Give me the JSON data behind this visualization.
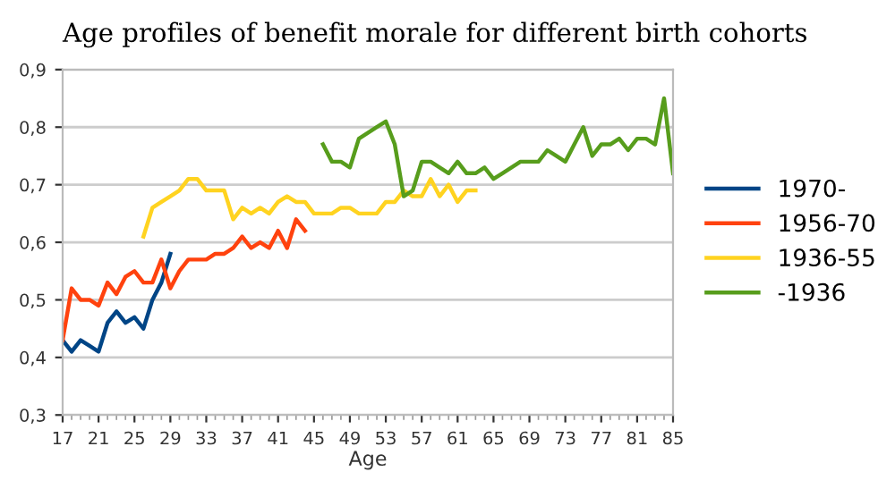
{
  "chart_data": {
    "type": "line",
    "title": "Age profiles of benefit morale for different birth cohorts",
    "xlabel": "Age",
    "xlim": [
      17,
      85
    ],
    "xticks": [
      17,
      21,
      25,
      29,
      33,
      37,
      41,
      45,
      49,
      53,
      57,
      61,
      65,
      69,
      73,
      77,
      81,
      85
    ],
    "ylim": [
      0.3,
      0.9
    ],
    "yticks": [
      {
        "value": 0.3,
        "label": "0,3"
      },
      {
        "value": 0.4,
        "label": "0,4"
      },
      {
        "value": 0.5,
        "label": "0,5"
      },
      {
        "value": 0.6,
        "label": "0,6"
      },
      {
        "value": 0.7,
        "label": "0,7"
      },
      {
        "value": 0.8,
        "label": "0,8"
      },
      {
        "value": 0.9,
        "label": "0,9"
      }
    ],
    "grid": "y",
    "legend": "right",
    "marker": "none",
    "line_style": "solid",
    "series": [
      {
        "name": "1970-",
        "color": "#004586",
        "x": [
          17,
          18,
          19,
          20,
          21,
          22,
          23,
          24,
          25,
          26,
          27,
          28,
          29
        ],
        "values": [
          0.43,
          0.41,
          0.43,
          0.42,
          0.41,
          0.46,
          0.48,
          0.46,
          0.47,
          0.45,
          0.5,
          0.53,
          0.58
        ]
      },
      {
        "name": "1956-70",
        "color": "#ff420e",
        "x": [
          17,
          18,
          19,
          20,
          21,
          22,
          23,
          24,
          25,
          26,
          27,
          28,
          29,
          30,
          31,
          32,
          33,
          34,
          35,
          36,
          37,
          38,
          39,
          40,
          41,
          42,
          43,
          44
        ],
        "values": [
          0.43,
          0.52,
          0.5,
          0.5,
          0.49,
          0.53,
          0.51,
          0.54,
          0.55,
          0.53,
          0.53,
          0.57,
          0.52,
          0.55,
          0.57,
          0.57,
          0.57,
          0.58,
          0.58,
          0.59,
          0.61,
          0.59,
          0.6,
          0.59,
          0.62,
          0.59,
          0.64,
          0.62
        ]
      },
      {
        "name": "1936-55",
        "color": "#ffd320",
        "x": [
          26,
          27,
          28,
          29,
          30,
          31,
          32,
          33,
          34,
          35,
          36,
          37,
          38,
          39,
          40,
          41,
          42,
          43,
          44,
          45,
          46,
          47,
          48,
          49,
          50,
          51,
          52,
          53,
          54,
          55,
          56,
          57,
          58,
          59,
          60,
          61,
          62,
          63
        ],
        "values": [
          0.61,
          0.66,
          0.67,
          0.68,
          0.69,
          0.71,
          0.71,
          0.69,
          0.69,
          0.69,
          0.64,
          0.66,
          0.65,
          0.66,
          0.65,
          0.67,
          0.68,
          0.67,
          0.67,
          0.65,
          0.65,
          0.65,
          0.66,
          0.66,
          0.65,
          0.65,
          0.65,
          0.67,
          0.67,
          0.69,
          0.68,
          0.68,
          0.71,
          0.68,
          0.7,
          0.67,
          0.69,
          0.69
        ]
      },
      {
        "name": "-1936",
        "color": "#579d1c",
        "x": [
          46,
          47,
          48,
          49,
          50,
          51,
          52,
          53,
          54,
          55,
          56,
          57,
          58,
          59,
          60,
          61,
          62,
          63,
          64,
          65,
          66,
          67,
          68,
          69,
          70,
          71,
          72,
          73,
          74,
          75,
          76,
          77,
          78,
          79,
          80,
          81,
          82,
          83,
          84,
          85
        ],
        "values": [
          0.77,
          0.74,
          0.74,
          0.73,
          0.78,
          0.79,
          0.8,
          0.81,
          0.77,
          0.68,
          0.69,
          0.74,
          0.74,
          0.73,
          0.72,
          0.74,
          0.72,
          0.72,
          0.73,
          0.71,
          0.72,
          0.73,
          0.74,
          0.74,
          0.74,
          0.76,
          0.75,
          0.74,
          0.77,
          0.8,
          0.75,
          0.77,
          0.77,
          0.78,
          0.76,
          0.78,
          0.78,
          0.77,
          0.85,
          0.72
        ]
      }
    ]
  }
}
